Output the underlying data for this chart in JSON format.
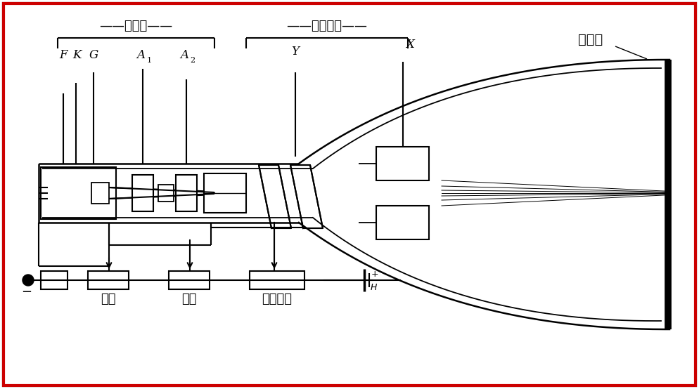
{
  "bg_color": "#ffffff",
  "border_color": "#cc0000",
  "line_color": "#000000",
  "label_F": "F",
  "label_K": "K",
  "label_G": "G",
  "label_A1": "A",
  "label_A1_sub": "1",
  "label_A2": "A",
  "label_A2_sub": "2",
  "label_Y": "Y",
  "label_X": "X",
  "label_dianzigun": "电子枪",
  "label_pianzhuan": "偏转系统",
  "label_yingguangping": "荧光屏",
  "label_liangdu": "亮度",
  "label_jujiao": "聚焦",
  "label_zhuzhujujiao": "轴助聚焦",
  "label_minus": "−",
  "label_plus": "+",
  "label_H": "H"
}
